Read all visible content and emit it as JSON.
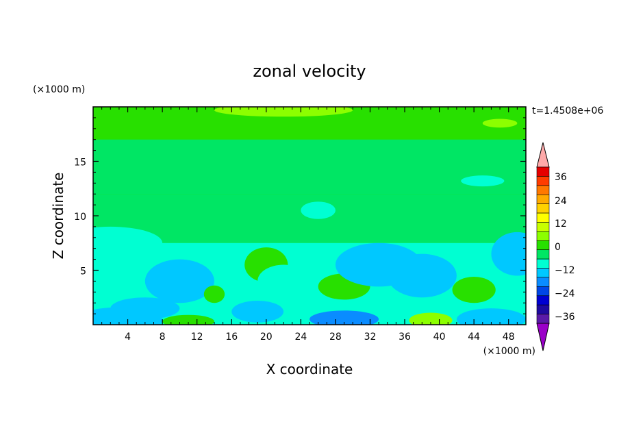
{
  "chart_data": {
    "type": "heatmap",
    "title": "zonal velocity",
    "xlabel": "X coordinate",
    "ylabel": "Z coordinate",
    "x_unit": "(×1000 m)",
    "y_unit": "(×1000 m)",
    "time_label": "t=1.4508e+06",
    "xlim": [
      0,
      50
    ],
    "ylim": [
      0,
      20
    ],
    "xticks": [
      4,
      8,
      12,
      16,
      20,
      24,
      28,
      32,
      36,
      40,
      44,
      48
    ],
    "yticks": [
      5,
      10,
      15
    ],
    "colorbar": {
      "labels": [
        36,
        24,
        12,
        0,
        -12,
        -24,
        -36
      ],
      "levels": [
        -42,
        -36,
        -30,
        -24,
        -18,
        -12,
        -6,
        0,
        6,
        12,
        18,
        24,
        30,
        36,
        42
      ],
      "colors": [
        "#9a00c8",
        "#5a1aa8",
        "#1e0aa0",
        "#0000d2",
        "#0046e6",
        "#0a8cff",
        "#00c8ff",
        "#00ffd2",
        "#00e664",
        "#28e000",
        "#8cff00",
        "#c8ff00",
        "#ffff00",
        "#ffd200",
        "#ffaa00",
        "#ff7800",
        "#ff3c00",
        "#e60000",
        "#ffaaaa"
      ],
      "extend": "both"
    },
    "fields": [
      {
        "x": 22,
        "y": 19.7,
        "sx": 8,
        "sy": 0.6,
        "value": 14
      },
      {
        "x": 47,
        "y": 18.5,
        "sx": 2,
        "sy": 0.4,
        "value": 12
      },
      {
        "x": 3,
        "y": 0.4,
        "sx": 5,
        "sy": 1.2,
        "value": -9
      },
      {
        "x": 10,
        "y": 4,
        "sx": 4,
        "sy": 2.0,
        "value": -11
      },
      {
        "x": 6,
        "y": 1.5,
        "sx": 4,
        "sy": 1.0,
        "value": -8
      },
      {
        "x": 14,
        "y": 2.8,
        "sx": 1.2,
        "sy": 0.8,
        "value": 9
      },
      {
        "x": 20,
        "y": 5.5,
        "sx": 2.5,
        "sy": 1.6,
        "value": 9
      },
      {
        "x": 19,
        "y": 1.2,
        "sx": 3,
        "sy": 1.0,
        "value": -12
      },
      {
        "x": 22,
        "y": 4.0,
        "sx": 3,
        "sy": 1.5,
        "value": -6
      },
      {
        "x": 29,
        "y": 3.5,
        "sx": 3,
        "sy": 1.2,
        "value": 9
      },
      {
        "x": 29,
        "y": 0.5,
        "sx": 4,
        "sy": 0.8,
        "value": -18
      },
      {
        "x": 33,
        "y": 5.5,
        "sx": 5,
        "sy": 2.0,
        "value": -8
      },
      {
        "x": 38,
        "y": 4.5,
        "sx": 4,
        "sy": 2.0,
        "value": -9
      },
      {
        "x": 39,
        "y": 0.4,
        "sx": 2.5,
        "sy": 0.7,
        "value": 12
      },
      {
        "x": 44,
        "y": 3.2,
        "sx": 2.5,
        "sy": 1.2,
        "value": 8
      },
      {
        "x": 46,
        "y": 0.5,
        "sx": 4,
        "sy": 1.0,
        "value": -10
      },
      {
        "x": 2,
        "y": 7.5,
        "sx": 6,
        "sy": 1.5,
        "value": -6
      },
      {
        "x": 49,
        "y": 6.5,
        "sx": 3,
        "sy": 2.0,
        "value": -7
      },
      {
        "x": 11,
        "y": 0.3,
        "sx": 3,
        "sy": 0.6,
        "value": 10
      },
      {
        "x": 45,
        "y": 13.2,
        "sx": 2.5,
        "sy": 0.5,
        "value": -5
      },
      {
        "x": 26,
        "y": 10.5,
        "sx": 2,
        "sy": 0.8,
        "value": -5
      }
    ]
  }
}
